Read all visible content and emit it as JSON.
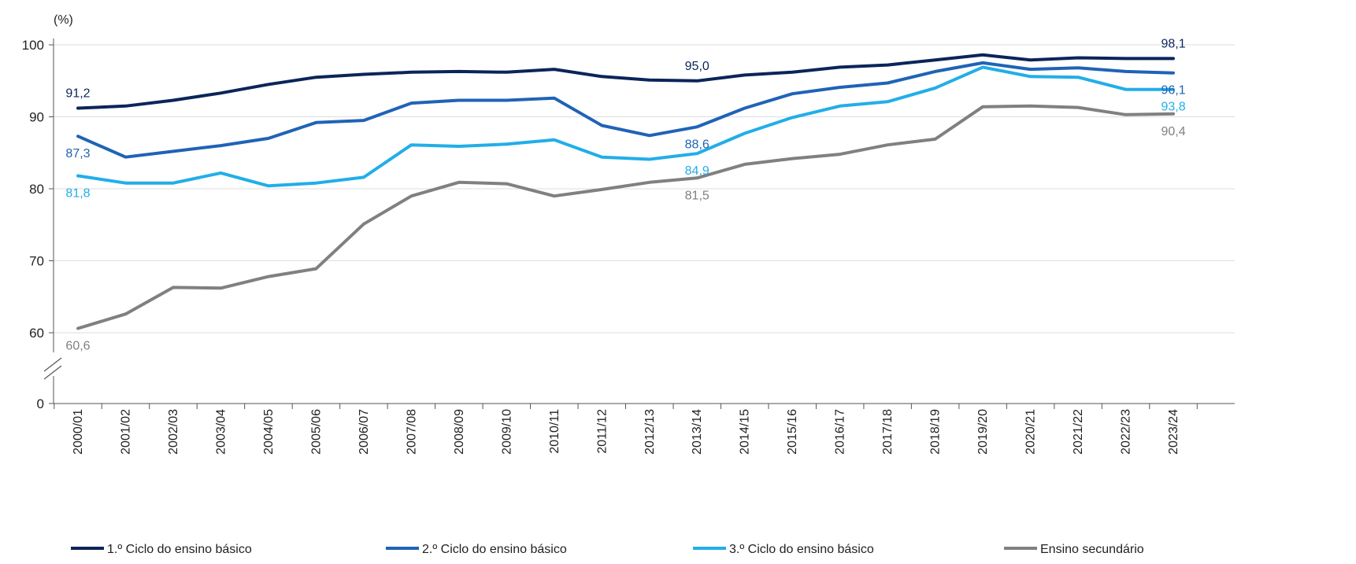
{
  "chart_data": {
    "type": "line",
    "unit_label": "(%)",
    "categories": [
      "2000/01",
      "2001/02",
      "2002/03",
      "2003/04",
      "2004/05",
      "2005/06",
      "2006/07",
      "2007/08",
      "2008/09",
      "2009/10",
      "2010/11",
      "2011/12",
      "2012/13",
      "2013/14",
      "2014/15",
      "2015/16",
      "2016/17",
      "2017/18",
      "2018/19",
      "2019/20",
      "2020/21",
      "2021/22",
      "2022/23",
      "2023/24"
    ],
    "yticks": [
      0,
      60,
      70,
      80,
      90,
      100
    ],
    "ylim": [
      0,
      100
    ],
    "axis_break": true,
    "grid": true,
    "legend_position": "bottom",
    "series": [
      {
        "name": "1.º Ciclo do ensino básico",
        "color": "#0b2559",
        "values": [
          91.2,
          91.5,
          92.3,
          93.3,
          94.5,
          95.5,
          95.9,
          96.2,
          96.3,
          96.2,
          96.6,
          95.6,
          95.1,
          95.0,
          95.8,
          96.2,
          96.9,
          97.2,
          97.9,
          98.6,
          97.9,
          98.2,
          98.1,
          98.1
        ],
        "labels": [
          {
            "index": 0,
            "text": "91,2",
            "pos": "above"
          },
          {
            "index": 13,
            "text": "95,0",
            "pos": "above"
          },
          {
            "index": 23,
            "text": "98,1",
            "pos": "above"
          }
        ]
      },
      {
        "name": "2.º Ciclo do ensino básico",
        "color": "#1f63b6",
        "values": [
          87.3,
          84.4,
          85.2,
          86.0,
          87.0,
          89.2,
          89.5,
          91.9,
          92.3,
          92.3,
          92.6,
          88.8,
          87.4,
          88.6,
          91.2,
          93.2,
          94.1,
          94.7,
          96.3,
          97.5,
          96.6,
          96.8,
          96.3,
          96.1
        ],
        "labels": [
          {
            "index": 0,
            "text": "87,3",
            "pos": "below"
          },
          {
            "index": 13,
            "text": "88,6",
            "pos": "below"
          },
          {
            "index": 23,
            "text": "96,1",
            "pos": "below"
          }
        ]
      },
      {
        "name": "3.º Ciclo do ensino básico",
        "color": "#22aee8",
        "values": [
          81.8,
          80.8,
          80.8,
          82.2,
          80.4,
          80.8,
          81.6,
          86.1,
          85.9,
          86.2,
          86.8,
          84.4,
          84.1,
          84.9,
          87.7,
          89.9,
          91.5,
          92.1,
          94.0,
          96.9,
          95.6,
          95.5,
          93.8,
          93.8
        ],
        "labels": [
          {
            "index": 0,
            "text": "81,8",
            "pos": "below"
          },
          {
            "index": 13,
            "text": "84,9",
            "pos": "below"
          },
          {
            "index": 23,
            "text": "93,8",
            "pos": "below"
          }
        ]
      },
      {
        "name": "Ensino secundário",
        "color": "#808080",
        "values": [
          60.6,
          62.6,
          66.3,
          66.2,
          67.8,
          68.9,
          75.1,
          79.0,
          80.9,
          80.7,
          79.0,
          79.9,
          80.9,
          81.5,
          83.4,
          84.2,
          84.8,
          86.1,
          86.9,
          91.4,
          91.5,
          91.3,
          90.3,
          90.4
        ],
        "labels": [
          {
            "index": 0,
            "text": "60,6",
            "pos": "below"
          },
          {
            "index": 13,
            "text": "81,5",
            "pos": "below"
          },
          {
            "index": 23,
            "text": "90,4",
            "pos": "below"
          }
        ]
      }
    ]
  }
}
